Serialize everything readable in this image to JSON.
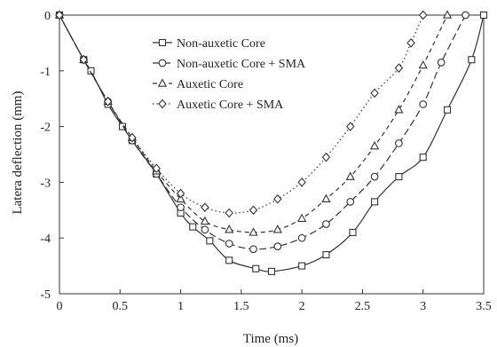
{
  "chart_data": {
    "type": "line",
    "xlabel": "Time (ms)",
    "ylabel": "Latera deflection (mm)",
    "xlim": [
      0,
      3.5
    ],
    "ylim": [
      -5,
      0
    ],
    "x_ticks": [
      0,
      0.5,
      1,
      1.5,
      2,
      2.5,
      3,
      3.5
    ],
    "x_tick_labels": [
      "0",
      "0.5",
      "1",
      "1.5",
      "2",
      "2.5",
      "3",
      "3.5"
    ],
    "y_ticks": [
      0,
      -1,
      -2,
      -3,
      -4,
      -5
    ],
    "y_tick_labels": [
      "0",
      "-1",
      "-2",
      "-3",
      "-4",
      "-5"
    ],
    "grid": false,
    "legend_position": "top-left",
    "series": [
      {
        "name": "Non-auxetic Core",
        "marker": "square",
        "line_style": "solid",
        "x": [
          0,
          0.2,
          0.26,
          0.4,
          0.52,
          0.6,
          0.8,
          1.0,
          1.1,
          1.24,
          1.4,
          1.62,
          1.75,
          2.0,
          2.2,
          2.42,
          2.6,
          2.8,
          3.0,
          3.2,
          3.4,
          3.5
        ],
        "y": [
          0,
          -0.8,
          -1.0,
          -1.6,
          -2.0,
          -2.25,
          -2.85,
          -3.55,
          -3.8,
          -4.05,
          -4.4,
          -4.55,
          -4.6,
          -4.5,
          -4.3,
          -3.9,
          -3.35,
          -2.9,
          -2.55,
          -1.7,
          -0.8,
          0
        ]
      },
      {
        "name": "Non-auxetic Core + SMA",
        "marker": "circle",
        "line_style": "long-dash",
        "x": [
          0,
          0.2,
          0.4,
          0.6,
          0.8,
          1.0,
          1.2,
          1.4,
          1.6,
          1.8,
          2.0,
          2.2,
          2.4,
          2.6,
          2.8,
          3.0,
          3.15,
          3.35
        ],
        "y": [
          0,
          -0.8,
          -1.55,
          -2.25,
          -2.85,
          -3.45,
          -3.85,
          -4.1,
          -4.2,
          -4.15,
          -4.0,
          -3.75,
          -3.35,
          -2.9,
          -2.3,
          -1.6,
          -0.85,
          0
        ]
      },
      {
        "name": "Auxetic Core",
        "marker": "triangle",
        "line_style": "dash",
        "x": [
          0,
          0.2,
          0.4,
          0.6,
          0.8,
          1.0,
          1.2,
          1.4,
          1.6,
          1.8,
          2.0,
          2.2,
          2.4,
          2.6,
          2.8,
          3.0,
          3.2
        ],
        "y": [
          0,
          -0.8,
          -1.55,
          -2.2,
          -2.8,
          -3.3,
          -3.7,
          -3.85,
          -3.9,
          -3.85,
          -3.65,
          -3.3,
          -2.9,
          -2.35,
          -1.7,
          -0.9,
          0
        ]
      },
      {
        "name": "Auxetic Core + SMA",
        "marker": "diamond",
        "line_style": "dotted",
        "x": [
          0,
          0.2,
          0.4,
          0.6,
          0.8,
          1.0,
          1.2,
          1.4,
          1.6,
          1.8,
          2.0,
          2.2,
          2.4,
          2.6,
          2.8,
          2.9,
          3.0
        ],
        "y": [
          0,
          -0.8,
          -1.55,
          -2.2,
          -2.75,
          -3.2,
          -3.45,
          -3.55,
          -3.5,
          -3.3,
          -3.0,
          -2.55,
          -2.0,
          -1.4,
          -0.95,
          -0.5,
          0
        ]
      }
    ]
  }
}
